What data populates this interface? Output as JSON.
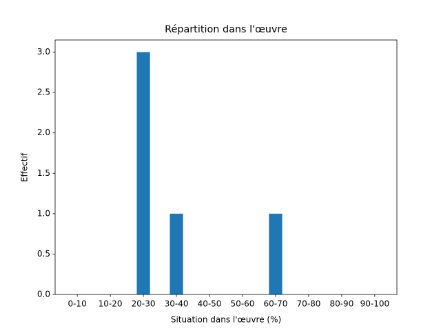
{
  "chart_data": {
    "type": "bar",
    "title": "Répartition dans l'œuvre",
    "x_label": "Situation dans l'œuvre (%)",
    "y_label": "Effectif",
    "categories": [
      "0-10",
      "10-20",
      "20-30",
      "30-40",
      "40-50",
      "50-60",
      "60-70",
      "70-80",
      "80-90",
      "90-100"
    ],
    "values": [
      0,
      0,
      3,
      1,
      0,
      0,
      1,
      0,
      0,
      0
    ],
    "color": "#1f77b4",
    "ylim": [
      0,
      3.15
    ],
    "yticks": [
      {
        "value": 0,
        "label": "0.0"
      },
      {
        "value": 0.5,
        "label": "0.5"
      },
      {
        "value": 1,
        "label": "1.0"
      },
      {
        "value": 1.5,
        "label": "1.5"
      },
      {
        "value": 2,
        "label": "2.0"
      },
      {
        "value": 2.5,
        "label": "2.5"
      },
      {
        "value": 3,
        "label": "3.0"
      }
    ],
    "grid": false
  }
}
